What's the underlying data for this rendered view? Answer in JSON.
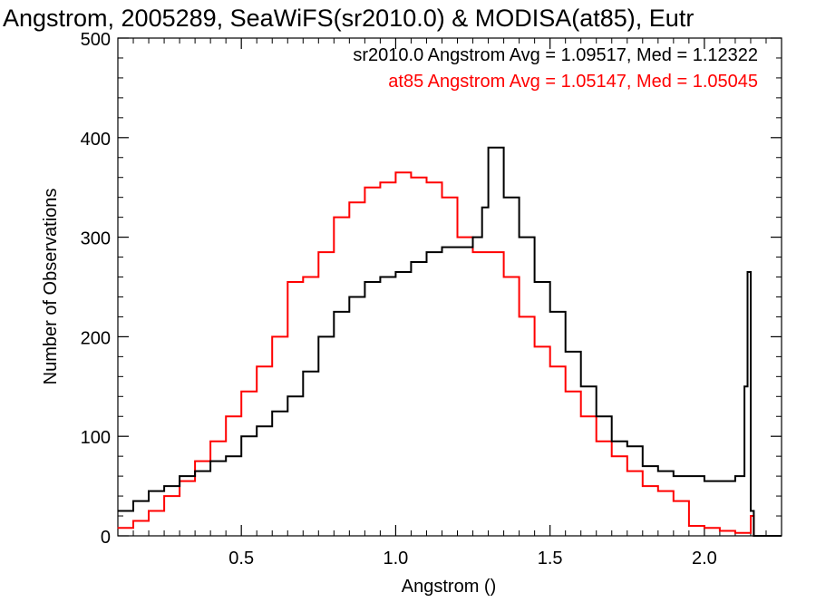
{
  "chart_data": {
    "type": "line",
    "title": "Angstrom, 2005289, SeaWiFS(sr2010.0) & MODISA(at85), Eutr",
    "xlabel": "Angstrom ()",
    "ylabel": "Number of Observations",
    "xlim": [
      0.1,
      2.25
    ],
    "ylim": [
      0,
      500
    ],
    "xticks": [
      0.5,
      1.0,
      1.5,
      2.0
    ],
    "xtick_labels": [
      "0.5",
      "1.0",
      "1.5",
      "2.0"
    ],
    "yticks": [
      0,
      100,
      200,
      300,
      400,
      500
    ],
    "ytick_labels": [
      "0",
      "100",
      "200",
      "300",
      "400",
      "500"
    ],
    "grid": false,
    "legend_placement": "top-right",
    "annotations": [
      {
        "text": "sr2010.0 Angstrom Avg = 1.09517, Med = 1.12322",
        "color": "#000000"
      },
      {
        "text": "at85 Angstrom Avg = 1.05147, Med = 1.05045",
        "color": "#ff0000"
      }
    ],
    "series": [
      {
        "color": "#000000",
        "x": [
          0.1,
          0.15,
          0.2,
          0.25,
          0.3,
          0.35,
          0.4,
          0.45,
          0.5,
          0.55,
          0.6,
          0.65,
          0.7,
          0.75,
          0.8,
          0.85,
          0.9,
          0.95,
          1.0,
          1.05,
          1.1,
          1.15,
          1.2,
          1.25,
          1.28,
          1.3,
          1.35,
          1.4,
          1.45,
          1.5,
          1.55,
          1.6,
          1.65,
          1.7,
          1.75,
          1.8,
          1.85,
          1.9,
          1.95,
          2.0,
          2.05,
          2.1,
          2.13,
          2.14,
          2.15,
          2.16,
          2.25
        ],
        "y": [
          25,
          35,
          45,
          50,
          60,
          65,
          75,
          80,
          100,
          110,
          125,
          140,
          165,
          200,
          225,
          240,
          255,
          260,
          265,
          275,
          285,
          290,
          290,
          300,
          330,
          390,
          340,
          300,
          255,
          225,
          185,
          150,
          120,
          95,
          90,
          70,
          65,
          60,
          60,
          55,
          55,
          60,
          150,
          265,
          25,
          0,
          0
        ]
      },
      {
        "color": "#ff0000",
        "x": [
          0.1,
          0.15,
          0.2,
          0.25,
          0.3,
          0.35,
          0.4,
          0.45,
          0.5,
          0.55,
          0.6,
          0.65,
          0.7,
          0.75,
          0.8,
          0.85,
          0.9,
          0.95,
          1.0,
          1.05,
          1.1,
          1.15,
          1.2,
          1.25,
          1.3,
          1.35,
          1.4,
          1.45,
          1.5,
          1.55,
          1.6,
          1.65,
          1.7,
          1.75,
          1.8,
          1.85,
          1.9,
          1.95,
          2.0,
          2.05,
          2.1,
          2.14,
          2.15,
          2.16,
          2.25
        ],
        "y": [
          8,
          15,
          25,
          40,
          55,
          75,
          95,
          120,
          145,
          170,
          200,
          255,
          260,
          285,
          320,
          335,
          350,
          355,
          365,
          360,
          355,
          340,
          300,
          285,
          285,
          260,
          220,
          190,
          170,
          145,
          120,
          95,
          80,
          65,
          50,
          45,
          35,
          10,
          8,
          5,
          3,
          3,
          20,
          0,
          0
        ]
      }
    ]
  }
}
